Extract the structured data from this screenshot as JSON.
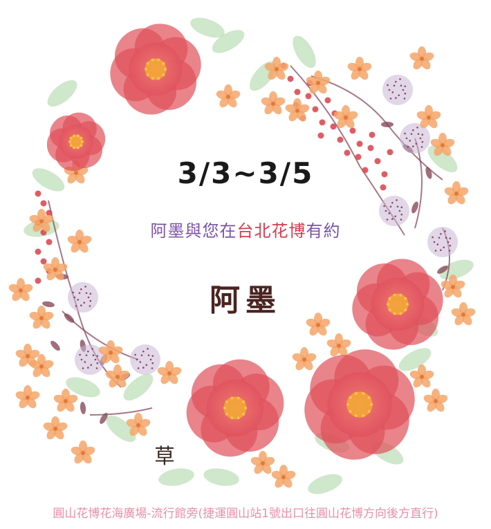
{
  "event": {
    "date_range": "3/3~3/5",
    "tagline": {
      "part1": "阿墨與您在",
      "part2": "台北花博",
      "part3": "有約"
    },
    "brand": "阿墨",
    "address": "圓山花博花海廣場-流行館旁(捷運圓山站1號出口往圓山花博方向後方直行)"
  },
  "artwork": {
    "seal_char": "草",
    "icon": "watercolor-flower-wreath",
    "colors": {
      "camellia": "#e0505a",
      "camellia_light": "#f08a8a",
      "camellia_center": "#f2a33a",
      "small_flower": "#f4a66a",
      "berry": "#d8414a",
      "leaf": "#a8d4a0",
      "thistle": "#c9b6d6",
      "twig": "#8a4a5a"
    }
  }
}
